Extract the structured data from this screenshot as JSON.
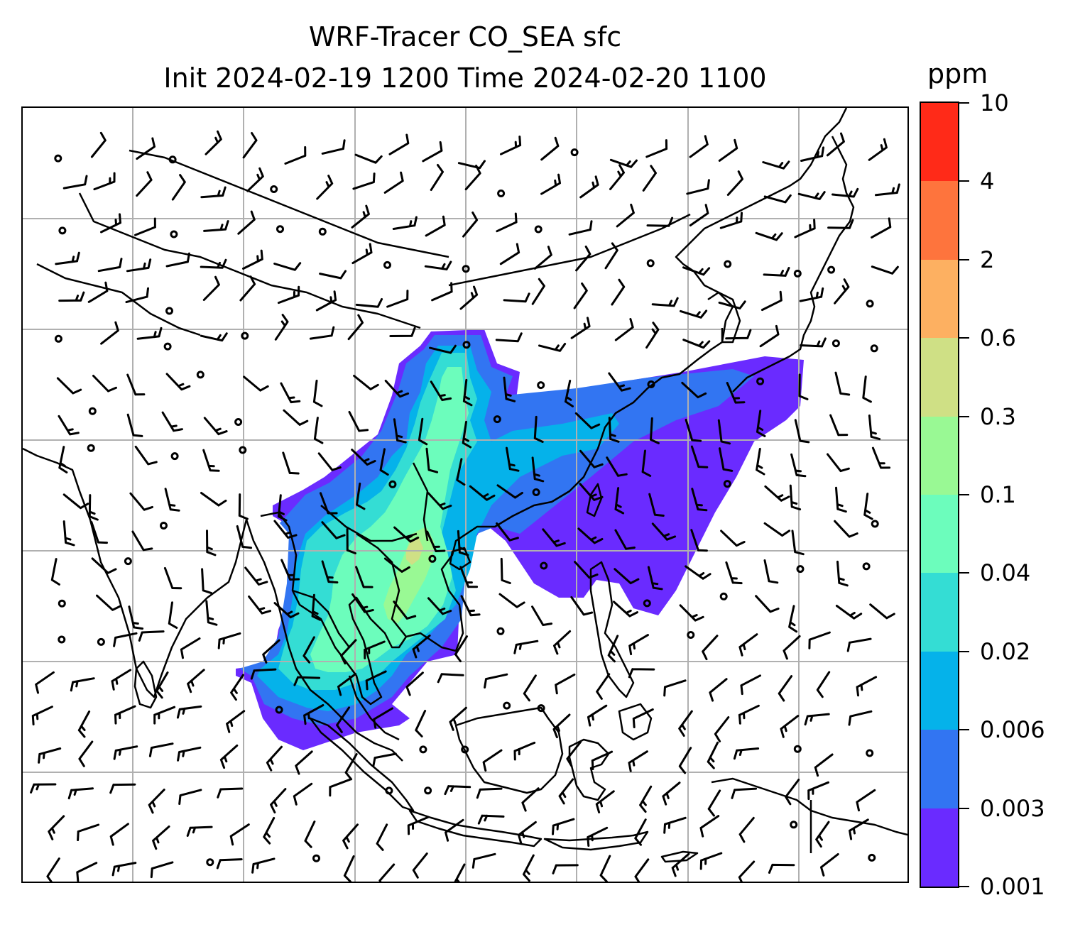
{
  "title": {
    "line1": "WRF-Tracer CO_SEA sfc",
    "line2": "Init 2024-02-19 1200 Time 2024-02-20 1100"
  },
  "colorbar": {
    "unit": "ppm",
    "levels": [
      "0.001",
      "0.003",
      "0.006",
      "0.02",
      "0.04",
      "0.1",
      "0.3",
      "0.6",
      "2",
      "4",
      "10"
    ],
    "colors": [
      "#6a2bff",
      "#3275f2",
      "#05b2ea",
      "#34ddd4",
      "#6cfdbc",
      "#99f994",
      "#cfe085",
      "#fdb061",
      "#fe743d",
      "#ff2a18"
    ]
  },
  "map": {
    "gridlines": true,
    "coastline_color": "#000000",
    "gridline_color": "#b0b0b0",
    "wind_barbs": true
  }
}
